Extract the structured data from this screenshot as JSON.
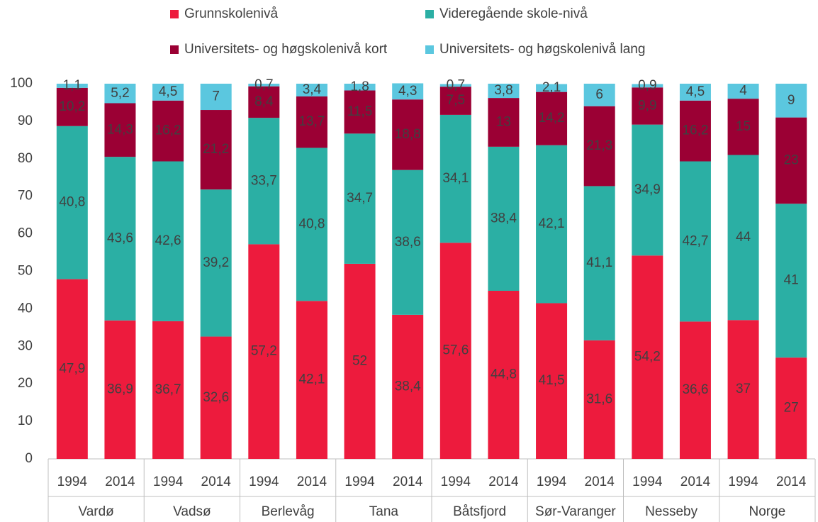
{
  "chart_data": {
    "type": "stacked_bar",
    "categories": [
      "1994",
      "2014",
      "1994",
      "2014",
      "1994",
      "2014",
      "1994",
      "2014",
      "1994",
      "2014",
      "1994",
      "2014",
      "1994",
      "2014",
      "1994",
      "2014"
    ],
    "groups": [
      "Vardø",
      "Vadsø",
      "Berlevåg",
      "Tana",
      "Båtsfjord",
      "Sør-Varanger",
      "Nesseby",
      "Norge"
    ],
    "series": [
      {
        "name": "Grunnskolenivå",
        "color": "#ed1b3d",
        "values": [
          47.9,
          36.9,
          36.7,
          32.6,
          57.2,
          42.1,
          52,
          38.4,
          57.6,
          44.8,
          41.5,
          31.6,
          54.2,
          36.6,
          37,
          27
        ],
        "value_labels": [
          "47,9",
          "36,9",
          "36,7",
          "32,6",
          "57,2",
          "42,1",
          "52",
          "38,4",
          "57,6",
          "44,8",
          "41,5",
          "31,6",
          "54,2",
          "36,6",
          "37",
          "27"
        ]
      },
      {
        "name": "Videregående skole-nivå",
        "color": "#2bafa4",
        "values": [
          40.8,
          43.6,
          42.6,
          39.2,
          33.7,
          40.8,
          34.7,
          38.6,
          34.1,
          38.4,
          42.1,
          41.1,
          34.9,
          42.7,
          44,
          41
        ],
        "value_labels": [
          "40,8",
          "43,6",
          "42,6",
          "39,2",
          "33,7",
          "40,8",
          "34,7",
          "38,6",
          "34,1",
          "38,4",
          "42,1",
          "41,1",
          "34,9",
          "42,7",
          "44",
          "41"
        ]
      },
      {
        "name": "Universitets- og høgskolenivå kort",
        "color": "#9b0034",
        "values": [
          10.2,
          14.3,
          16.2,
          21.2,
          8.4,
          13.7,
          11.5,
          18.8,
          7.5,
          13,
          14.2,
          21.3,
          9.9,
          16.2,
          15,
          23
        ],
        "value_labels": [
          "10,2",
          "14,3",
          "16,2",
          "21,2",
          "8,4",
          "13,7",
          "11,5",
          "18,8",
          "7,5",
          "13",
          "14,2",
          "21,3",
          "9,9",
          "16,2",
          "15",
          "23"
        ]
      },
      {
        "name": "Universitets- og høgskolenivå lang",
        "color": "#5bc7df",
        "values": [
          1.1,
          5.2,
          4.5,
          7,
          0.7,
          3.4,
          1.8,
          4.3,
          0.7,
          3.8,
          2.1,
          6,
          0.9,
          4.5,
          4,
          9
        ],
        "value_labels": [
          "1,1",
          "5,2",
          "4,5",
          "7",
          "0,7",
          "3,4",
          "1,8",
          "4,3",
          "0,7",
          "3,8",
          "2,1",
          "6",
          "0,9",
          "4,5",
          "4",
          "9"
        ]
      }
    ],
    "ylim": [
      0,
      100
    ],
    "yticks": [
      0,
      10,
      20,
      30,
      40,
      50,
      60,
      70,
      80,
      90,
      100
    ],
    "grid": false
  }
}
